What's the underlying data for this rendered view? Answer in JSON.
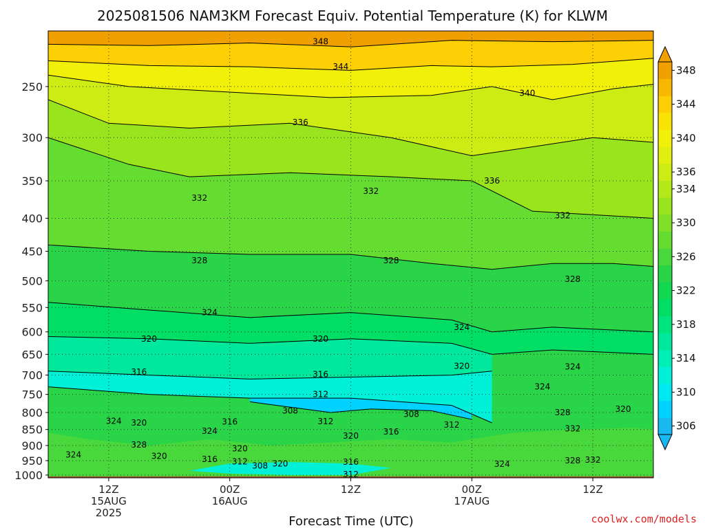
{
  "title": "2025081506 NAM3KM Forecast Equiv. Potential Temperature (K) for KLWM",
  "credit": "coolwx.com/models",
  "chart_data": {
    "type": "heatmap",
    "title": "2025081506 NAM3KM Forecast Equiv. Potential Temperature (K) for KLWM",
    "xlabel": "Forecast Time (UTC)",
    "ylabel": "",
    "y_scale": "log",
    "ylim": [
      1010,
      205
    ],
    "xlim": [
      0,
      60
    ],
    "y_ticks": [
      250,
      300,
      350,
      400,
      450,
      500,
      550,
      600,
      650,
      700,
      750,
      800,
      850,
      900,
      950,
      1000
    ],
    "x_ticks": [
      {
        "x": 6,
        "lines": [
          "12Z",
          "15AUG",
          "2025"
        ]
      },
      {
        "x": 18,
        "lines": [
          "00Z",
          "16AUG"
        ]
      },
      {
        "x": 30,
        "lines": [
          "12Z"
        ]
      },
      {
        "x": 42,
        "lines": [
          "00Z",
          "17AUG"
        ]
      },
      {
        "x": 54,
        "lines": [
          "12Z"
        ]
      }
    ],
    "colorbar": {
      "levels": [
        306,
        308,
        310,
        312,
        314,
        316,
        318,
        320,
        322,
        324,
        326,
        328,
        330,
        332,
        334,
        336,
        338,
        340,
        342,
        344,
        346,
        348
      ],
      "labels": [
        306,
        310,
        314,
        318,
        322,
        326,
        330,
        334,
        336,
        340,
        344,
        348
      ],
      "colors": [
        "#1ab8f0",
        "#00d2ff",
        "#00e8f0",
        "#00f0d8",
        "#00eeb8",
        "#00e89c",
        "#00e480",
        "#00de66",
        "#10d850",
        "#2ad448",
        "#48d83c",
        "#64dc30",
        "#80e028",
        "#9ae41e",
        "#b4e818",
        "#ccec14",
        "#e0ee10",
        "#f0f008",
        "#f8e404",
        "#fcd004",
        "#f8b800",
        "#f0a000"
      ]
    },
    "series": [
      {
        "level_k": 348,
        "points": [
          [
            0,
            215
          ],
          [
            10,
            216
          ],
          [
            20,
            214
          ],
          [
            30,
            217
          ],
          [
            40,
            212
          ],
          [
            50,
            213
          ],
          [
            60,
            212
          ]
        ]
      },
      {
        "level_k": 344,
        "points": [
          [
            0,
            228
          ],
          [
            10,
            232
          ],
          [
            20,
            233
          ],
          [
            30,
            236
          ],
          [
            38,
            232
          ],
          [
            44,
            233
          ],
          [
            52,
            231
          ],
          [
            60,
            226
          ]
        ]
      },
      {
        "level_k": 340,
        "points": [
          [
            0,
            240
          ],
          [
            8,
            250
          ],
          [
            18,
            255
          ],
          [
            28,
            260
          ],
          [
            38,
            258
          ],
          [
            44,
            250
          ],
          [
            50,
            262
          ],
          [
            56,
            252
          ],
          [
            60,
            248
          ]
        ]
      },
      {
        "level_k": 336,
        "points": [
          [
            0,
            262
          ],
          [
            6,
            285
          ],
          [
            14,
            290
          ],
          [
            24,
            285
          ],
          [
            34,
            300
          ],
          [
            42,
            320
          ],
          [
            48,
            310
          ],
          [
            54,
            300
          ],
          [
            60,
            305
          ]
        ]
      },
      {
        "level_k": 332,
        "points": [
          [
            0,
            300
          ],
          [
            8,
            330
          ],
          [
            14,
            345
          ],
          [
            24,
            340
          ],
          [
            34,
            345
          ],
          [
            42,
            350
          ],
          [
            48,
            390
          ],
          [
            54,
            395
          ],
          [
            60,
            400
          ]
        ]
      },
      {
        "level_k": 328,
        "points": [
          [
            0,
            440
          ],
          [
            10,
            450
          ],
          [
            20,
            455
          ],
          [
            30,
            455
          ],
          [
            38,
            470
          ],
          [
            44,
            480
          ],
          [
            50,
            470
          ],
          [
            56,
            470
          ],
          [
            60,
            475
          ]
        ]
      },
      {
        "level_k": 324,
        "points": [
          [
            0,
            540
          ],
          [
            10,
            555
          ],
          [
            20,
            570
          ],
          [
            30,
            560
          ],
          [
            40,
            575
          ],
          [
            44,
            600
          ],
          [
            50,
            590
          ],
          [
            60,
            600
          ]
        ]
      },
      {
        "level_k": 320,
        "points": [
          [
            0,
            610
          ],
          [
            10,
            615
          ],
          [
            20,
            625
          ],
          [
            30,
            615
          ],
          [
            40,
            625
          ],
          [
            44,
            650
          ],
          [
            50,
            640
          ],
          [
            60,
            650
          ]
        ]
      },
      {
        "level_k": 316,
        "points": [
          [
            0,
            690
          ],
          [
            10,
            700
          ],
          [
            20,
            710
          ],
          [
            30,
            705
          ],
          [
            40,
            700
          ],
          [
            44,
            690
          ]
        ]
      },
      {
        "level_k": 312,
        "points": [
          [
            0,
            730
          ],
          [
            10,
            750
          ],
          [
            20,
            760
          ],
          [
            30,
            760
          ],
          [
            40,
            780
          ],
          [
            44,
            830
          ]
        ]
      },
      {
        "level_k": 308,
        "points": [
          [
            20,
            770
          ],
          [
            24,
            785
          ],
          [
            28,
            800
          ],
          [
            32,
            790
          ],
          [
            38,
            795
          ],
          [
            42,
            820
          ]
        ]
      }
    ],
    "contour_labels": [
      {
        "value": "348",
        "x": 27,
        "p": 213
      },
      {
        "value": "344",
        "x": 29,
        "p": 233
      },
      {
        "value": "340",
        "x": 47.5,
        "p": 256
      },
      {
        "value": "336",
        "x": 25,
        "p": 284
      },
      {
        "value": "336",
        "x": 44,
        "p": 350
      },
      {
        "value": "332",
        "x": 15,
        "p": 372
      },
      {
        "value": "332",
        "x": 32,
        "p": 363
      },
      {
        "value": "332",
        "x": 51,
        "p": 396
      },
      {
        "value": "328",
        "x": 15,
        "p": 465
      },
      {
        "value": "328",
        "x": 34,
        "p": 465
      },
      {
        "value": "328",
        "x": 52,
        "p": 497
      },
      {
        "value": "324",
        "x": 16,
        "p": 560
      },
      {
        "value": "324",
        "x": 41,
        "p": 590
      },
      {
        "value": "324",
        "x": 52,
        "p": 680
      },
      {
        "value": "324",
        "x": 49,
        "p": 730
      },
      {
        "value": "324",
        "x": 6.5,
        "p": 825
      },
      {
        "value": "324",
        "x": 16,
        "p": 855
      },
      {
        "value": "324",
        "x": 2.5,
        "p": 930
      },
      {
        "value": "324",
        "x": 45,
        "p": 962
      },
      {
        "value": "320",
        "x": 10,
        "p": 615
      },
      {
        "value": "320",
        "x": 27,
        "p": 615
      },
      {
        "value": "320",
        "x": 41,
        "p": 678
      },
      {
        "value": "320",
        "x": 9,
        "p": 830
      },
      {
        "value": "320",
        "x": 30,
        "p": 870
      },
      {
        "value": "320",
        "x": 19,
        "p": 910
      },
      {
        "value": "320",
        "x": 11,
        "p": 935
      },
      {
        "value": "320",
        "x": 23,
        "p": 960
      },
      {
        "value": "320",
        "x": 57,
        "p": 790
      },
      {
        "value": "316",
        "x": 9,
        "p": 692
      },
      {
        "value": "316",
        "x": 27,
        "p": 698
      },
      {
        "value": "316",
        "x": 18,
        "p": 827
      },
      {
        "value": "316",
        "x": 34,
        "p": 857
      },
      {
        "value": "316",
        "x": 16,
        "p": 945
      },
      {
        "value": "316",
        "x": 30,
        "p": 955
      },
      {
        "value": "312",
        "x": 27,
        "p": 750
      },
      {
        "value": "312",
        "x": 27.5,
        "p": 826
      },
      {
        "value": "312",
        "x": 40,
        "p": 836
      },
      {
        "value": "312",
        "x": 19,
        "p": 953
      },
      {
        "value": "312",
        "x": 30,
        "p": 998
      },
      {
        "value": "308",
        "x": 24,
        "p": 795
      },
      {
        "value": "308",
        "x": 36,
        "p": 805
      },
      {
        "value": "308",
        "x": 21,
        "p": 967
      },
      {
        "value": "328",
        "x": 9,
        "p": 898
      },
      {
        "value": "328",
        "x": 51,
        "p": 800
      },
      {
        "value": "328",
        "x": 52,
        "p": 950
      },
      {
        "value": "332",
        "x": 52,
        "p": 848
      },
      {
        "value": "332",
        "x": 54,
        "p": 948
      }
    ],
    "ground_color": "#a0522d"
  }
}
